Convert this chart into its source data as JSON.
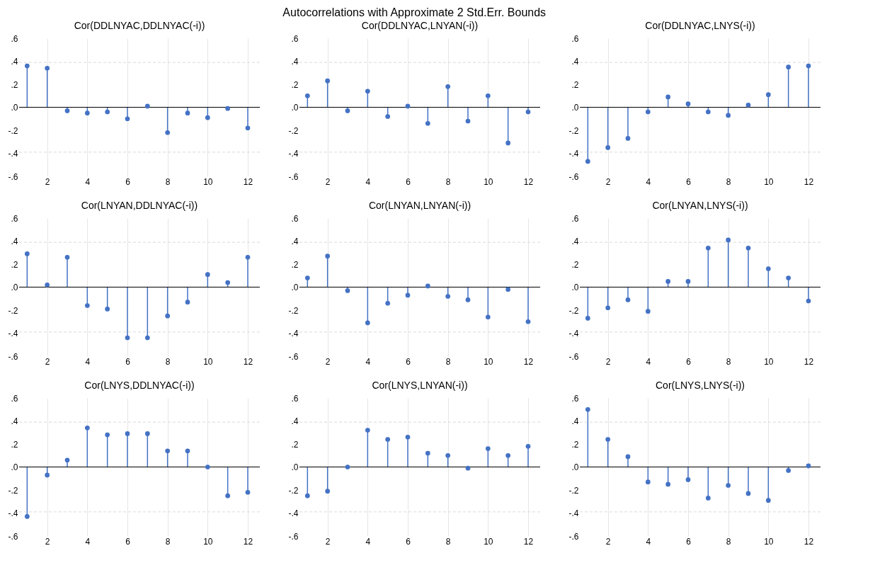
{
  "chart_data": [
    {
      "type": "lollipop",
      "title": "Cor(DDLNYAC,DDLNYAC(-i))",
      "annotations": [
        "Autocorrelations with Approximate 2 Std.Err. Bounds"
      ],
      "x": [
        1,
        2,
        3,
        4,
        5,
        6,
        7,
        8,
        9,
        10,
        11,
        12
      ],
      "values": [
        0.36,
        0.34,
        -0.03,
        -0.05,
        -0.04,
        -0.1,
        0.01,
        -0.22,
        -0.05,
        -0.09,
        -0.01,
        -0.18
      ],
      "color": "#4472c4",
      "marker": "circle",
      "xlim": [
        0.6,
        12.6
      ],
      "xticks": [
        2,
        4,
        6,
        8,
        10,
        12
      ],
      "ylim": [
        -0.6,
        0.6
      ],
      "yticks": [
        {
          "value": -0.6,
          "label": "-.6"
        },
        {
          "value": -0.4,
          "label": "-.4"
        },
        {
          "value": -0.2,
          "label": "-.2"
        },
        {
          "value": 0,
          "label": ".0"
        },
        {
          "value": 0.2,
          "label": ".2"
        },
        {
          "value": 0.4,
          "label": ".4"
        },
        {
          "value": 0.6,
          "label": ".6"
        }
      ],
      "grid": "x",
      "ref_lines": [
        {
          "axis": "y",
          "value": 0,
          "color": "#000000",
          "line_style": "solid"
        },
        {
          "axis": "y",
          "value": 0.39,
          "color": "#d9d9d9",
          "line_style": "dashed"
        },
        {
          "axis": "y",
          "value": -0.39,
          "color": "#d9d9d9",
          "line_style": "dashed"
        }
      ]
    },
    {
      "type": "lollipop",
      "title": "Cor(DDLNYAC,LNYAN(-i))",
      "x": [
        1,
        2,
        3,
        4,
        5,
        6,
        7,
        8,
        9,
        10,
        11,
        12
      ],
      "values": [
        0.1,
        0.23,
        -0.03,
        0.14,
        -0.08,
        0.01,
        -0.14,
        0.18,
        -0.12,
        0.1,
        -0.31,
        -0.04
      ],
      "color": "#4472c4",
      "marker": "circle",
      "xlim": [
        0.6,
        12.6
      ],
      "xticks": [
        2,
        4,
        6,
        8,
        10,
        12
      ],
      "ylim": [
        -0.6,
        0.6
      ],
      "yticks": [
        {
          "value": -0.6,
          "label": "-.6"
        },
        {
          "value": -0.4,
          "label": "-.4"
        },
        {
          "value": -0.2,
          "label": "-.2"
        },
        {
          "value": 0,
          "label": ".0"
        },
        {
          "value": 0.2,
          "label": ".2"
        },
        {
          "value": 0.4,
          "label": ".4"
        },
        {
          "value": 0.6,
          "label": ".6"
        }
      ],
      "grid": "x",
      "ref_lines": [
        {
          "axis": "y",
          "value": 0,
          "color": "#000000",
          "line_style": "solid"
        },
        {
          "axis": "y",
          "value": 0.39,
          "color": "#d9d9d9",
          "line_style": "dashed"
        },
        {
          "axis": "y",
          "value": -0.39,
          "color": "#d9d9d9",
          "line_style": "dashed"
        }
      ]
    },
    {
      "type": "lollipop",
      "title": "Cor(DDLNYAC,LNYS(-i))",
      "x": [
        1,
        2,
        3,
        4,
        5,
        6,
        7,
        8,
        9,
        10,
        11,
        12
      ],
      "values": [
        -0.47,
        -0.35,
        -0.27,
        -0.04,
        0.09,
        0.03,
        -0.04,
        -0.07,
        0.02,
        0.11,
        0.35,
        0.36
      ],
      "color": "#4472c4",
      "marker": "circle",
      "xlim": [
        0.6,
        12.6
      ],
      "xticks": [
        2,
        4,
        6,
        8,
        10,
        12
      ],
      "ylim": [
        -0.6,
        0.6
      ],
      "yticks": [
        {
          "value": -0.6,
          "label": "-.6"
        },
        {
          "value": -0.4,
          "label": "-.4"
        },
        {
          "value": -0.2,
          "label": "-.2"
        },
        {
          "value": 0,
          "label": ".0"
        },
        {
          "value": 0.2,
          "label": ".2"
        },
        {
          "value": 0.4,
          "label": ".4"
        },
        {
          "value": 0.6,
          "label": ".6"
        }
      ],
      "grid": "x",
      "ref_lines": [
        {
          "axis": "y",
          "value": 0,
          "color": "#000000",
          "line_style": "solid"
        },
        {
          "axis": "y",
          "value": 0.39,
          "color": "#d9d9d9",
          "line_style": "dashed"
        },
        {
          "axis": "y",
          "value": -0.39,
          "color": "#d9d9d9",
          "line_style": "dashed"
        }
      ]
    },
    {
      "type": "lollipop",
      "title": "Cor(LNYAN,DDLNYAC(-i))",
      "x": [
        1,
        2,
        3,
        4,
        5,
        6,
        7,
        8,
        9,
        10,
        11,
        12
      ],
      "values": [
        0.29,
        0.02,
        0.26,
        -0.16,
        -0.19,
        -0.44,
        -0.44,
        -0.25,
        -0.13,
        0.11,
        0.04,
        0.26
      ],
      "color": "#4472c4",
      "marker": "circle",
      "xlim": [
        0.6,
        12.6
      ],
      "xticks": [
        2,
        4,
        6,
        8,
        10,
        12
      ],
      "ylim": [
        -0.6,
        0.6
      ],
      "yticks": [
        {
          "value": -0.6,
          "label": "-.6"
        },
        {
          "value": -0.4,
          "label": "-.4"
        },
        {
          "value": -0.2,
          "label": "-.2"
        },
        {
          "value": 0,
          "label": ".0"
        },
        {
          "value": 0.2,
          "label": ".2"
        },
        {
          "value": 0.4,
          "label": ".4"
        },
        {
          "value": 0.6,
          "label": ".6"
        }
      ],
      "grid": "x",
      "ref_lines": [
        {
          "axis": "y",
          "value": 0,
          "color": "#000000",
          "line_style": "solid"
        },
        {
          "axis": "y",
          "value": 0.39,
          "color": "#d9d9d9",
          "line_style": "dashed"
        },
        {
          "axis": "y",
          "value": -0.39,
          "color": "#d9d9d9",
          "line_style": "dashed"
        }
      ]
    },
    {
      "type": "lollipop",
      "title": "Cor(LNYAN,LNYAN(-i))",
      "x": [
        1,
        2,
        3,
        4,
        5,
        6,
        7,
        8,
        9,
        10,
        11,
        12
      ],
      "values": [
        0.08,
        0.27,
        -0.03,
        -0.31,
        -0.14,
        -0.07,
        0.01,
        -0.08,
        -0.11,
        -0.26,
        -0.02,
        -0.3
      ],
      "color": "#4472c4",
      "marker": "circle",
      "xlim": [
        0.6,
        12.6
      ],
      "xticks": [
        2,
        4,
        6,
        8,
        10,
        12
      ],
      "ylim": [
        -0.6,
        0.6
      ],
      "yticks": [
        {
          "value": -0.6,
          "label": "-.6"
        },
        {
          "value": -0.4,
          "label": "-.4"
        },
        {
          "value": -0.2,
          "label": "-.2"
        },
        {
          "value": 0,
          "label": ".0"
        },
        {
          "value": 0.2,
          "label": ".2"
        },
        {
          "value": 0.4,
          "label": ".4"
        },
        {
          "value": 0.6,
          "label": ".6"
        }
      ],
      "grid": "x",
      "ref_lines": [
        {
          "axis": "y",
          "value": 0,
          "color": "#000000",
          "line_style": "solid"
        },
        {
          "axis": "y",
          "value": 0.39,
          "color": "#d9d9d9",
          "line_style": "dashed"
        },
        {
          "axis": "y",
          "value": -0.39,
          "color": "#d9d9d9",
          "line_style": "dashed"
        }
      ]
    },
    {
      "type": "lollipop",
      "title": "Cor(LNYAN,LNYS(-i))",
      "x": [
        1,
        2,
        3,
        4,
        5,
        6,
        7,
        8,
        9,
        10,
        11,
        12
      ],
      "values": [
        -0.27,
        -0.18,
        -0.11,
        -0.21,
        0.05,
        0.05,
        0.34,
        0.41,
        0.34,
        0.16,
        0.08,
        -0.12
      ],
      "color": "#4472c4",
      "marker": "circle",
      "xlim": [
        0.6,
        12.6
      ],
      "xticks": [
        2,
        4,
        6,
        8,
        10,
        12
      ],
      "ylim": [
        -0.6,
        0.6
      ],
      "yticks": [
        {
          "value": -0.6,
          "label": "-.6"
        },
        {
          "value": -0.4,
          "label": "-.4"
        },
        {
          "value": -0.2,
          "label": "-.2"
        },
        {
          "value": 0,
          "label": ".0"
        },
        {
          "value": 0.2,
          "label": ".2"
        },
        {
          "value": 0.4,
          "label": ".4"
        },
        {
          "value": 0.6,
          "label": ".6"
        }
      ],
      "grid": "x",
      "ref_lines": [
        {
          "axis": "y",
          "value": 0,
          "color": "#000000",
          "line_style": "solid"
        },
        {
          "axis": "y",
          "value": 0.39,
          "color": "#d9d9d9",
          "line_style": "dashed"
        },
        {
          "axis": "y",
          "value": -0.39,
          "color": "#d9d9d9",
          "line_style": "dashed"
        }
      ]
    },
    {
      "type": "lollipop",
      "title": "Cor(LNYS,DDLNYAC(-i))",
      "x": [
        1,
        2,
        3,
        4,
        5,
        6,
        7,
        8,
        9,
        10,
        11,
        12
      ],
      "values": [
        -0.43,
        -0.07,
        0.06,
        0.34,
        0.28,
        0.29,
        0.29,
        0.14,
        0.14,
        0.0,
        -0.25,
        -0.22
      ],
      "color": "#4472c4",
      "marker": "circle",
      "xlim": [
        0.6,
        12.6
      ],
      "xticks": [
        2,
        4,
        6,
        8,
        10,
        12
      ],
      "ylim": [
        -0.6,
        0.6
      ],
      "yticks": [
        {
          "value": -0.6,
          "label": "-.6"
        },
        {
          "value": -0.4,
          "label": "-.4"
        },
        {
          "value": -0.2,
          "label": "-.2"
        },
        {
          "value": 0,
          "label": ".0"
        },
        {
          "value": 0.2,
          "label": ".2"
        },
        {
          "value": 0.4,
          "label": ".4"
        },
        {
          "value": 0.6,
          "label": ".6"
        }
      ],
      "grid": "x",
      "ref_lines": [
        {
          "axis": "y",
          "value": 0,
          "color": "#000000",
          "line_style": "solid"
        },
        {
          "axis": "y",
          "value": 0.39,
          "color": "#d9d9d9",
          "line_style": "dashed"
        },
        {
          "axis": "y",
          "value": -0.39,
          "color": "#d9d9d9",
          "line_style": "dashed"
        }
      ]
    },
    {
      "type": "lollipop",
      "title": "Cor(LNYS,LNYAN(-i))",
      "x": [
        1,
        2,
        3,
        4,
        5,
        6,
        7,
        8,
        9,
        10,
        11,
        12
      ],
      "values": [
        -0.25,
        -0.21,
        0.0,
        0.32,
        0.24,
        0.26,
        0.12,
        0.1,
        -0.01,
        0.16,
        0.1,
        0.18
      ],
      "color": "#4472c4",
      "marker": "circle",
      "xlim": [
        0.6,
        12.6
      ],
      "xticks": [
        2,
        4,
        6,
        8,
        10,
        12
      ],
      "ylim": [
        -0.6,
        0.6
      ],
      "yticks": [
        {
          "value": -0.6,
          "label": "-.6"
        },
        {
          "value": -0.4,
          "label": "-.4"
        },
        {
          "value": -0.2,
          "label": "-.2"
        },
        {
          "value": 0,
          "label": ".0"
        },
        {
          "value": 0.2,
          "label": ".2"
        },
        {
          "value": 0.4,
          "label": ".4"
        },
        {
          "value": 0.6,
          "label": ".6"
        }
      ],
      "grid": "x",
      "ref_lines": [
        {
          "axis": "y",
          "value": 0,
          "color": "#000000",
          "line_style": "solid"
        },
        {
          "axis": "y",
          "value": 0.39,
          "color": "#d9d9d9",
          "line_style": "dashed"
        },
        {
          "axis": "y",
          "value": -0.39,
          "color": "#d9d9d9",
          "line_style": "dashed"
        }
      ]
    },
    {
      "type": "lollipop",
      "title": "Cor(LNYS,LNYS(-i))",
      "x": [
        1,
        2,
        3,
        4,
        5,
        6,
        7,
        8,
        9,
        10,
        11,
        12
      ],
      "values": [
        0.5,
        0.24,
        0.09,
        -0.13,
        -0.15,
        -0.11,
        -0.27,
        -0.16,
        -0.23,
        -0.29,
        -0.03,
        0.01
      ],
      "color": "#4472c4",
      "marker": "circle",
      "xlim": [
        0.6,
        12.6
      ],
      "xticks": [
        2,
        4,
        6,
        8,
        10,
        12
      ],
      "ylim": [
        -0.6,
        0.6
      ],
      "yticks": [
        {
          "value": -0.6,
          "label": "-.6"
        },
        {
          "value": -0.4,
          "label": "-.4"
        },
        {
          "value": -0.2,
          "label": "-.2"
        },
        {
          "value": 0,
          "label": ".0"
        },
        {
          "value": 0.2,
          "label": ".2"
        },
        {
          "value": 0.4,
          "label": ".4"
        },
        {
          "value": 0.6,
          "label": ".6"
        }
      ],
      "grid": "x",
      "ref_lines": [
        {
          "axis": "y",
          "value": 0,
          "color": "#000000",
          "line_style": "solid"
        },
        {
          "axis": "y",
          "value": 0.39,
          "color": "#d9d9d9",
          "line_style": "dashed"
        },
        {
          "axis": "y",
          "value": -0.39,
          "color": "#d9d9d9",
          "line_style": "dashed"
        }
      ]
    }
  ]
}
